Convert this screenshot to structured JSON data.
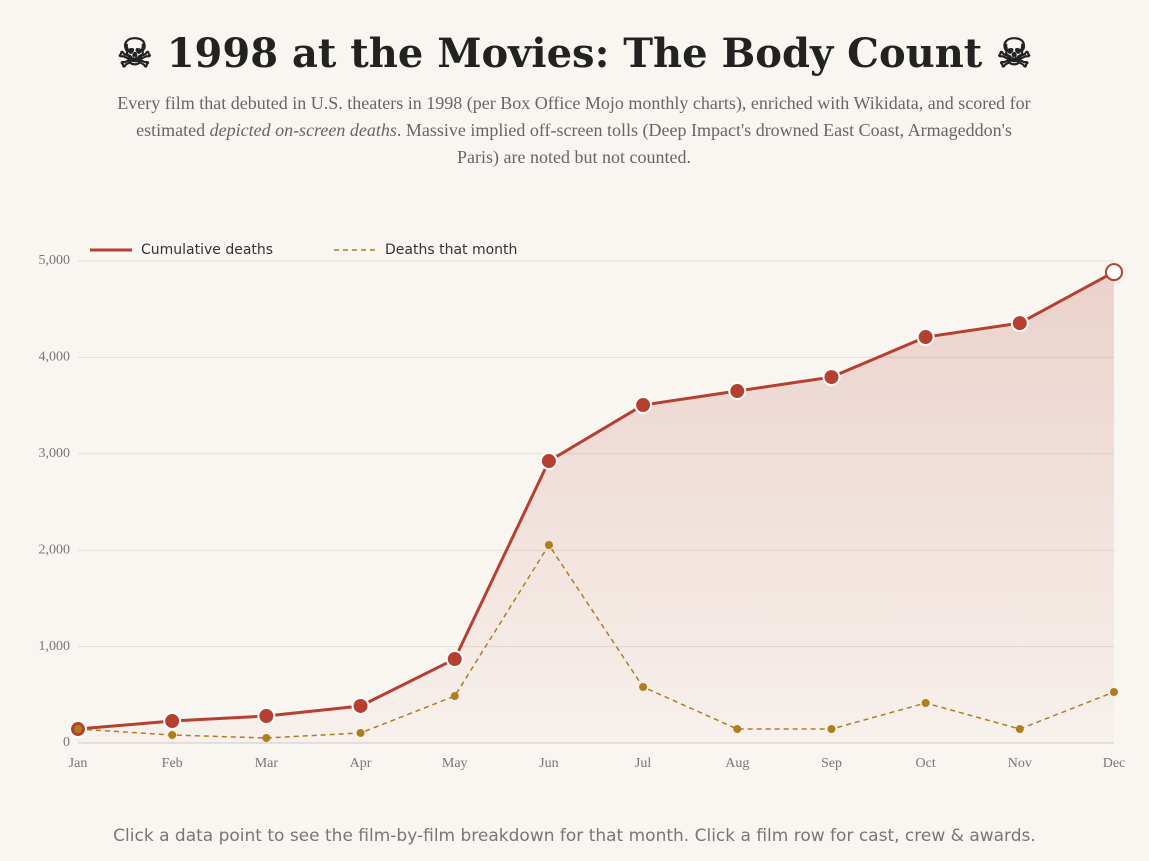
{
  "chart_data": {
    "type": "line",
    "title": "☠ 1998 at the Movies: The Body Count ☠",
    "subtitle": [
      "Every film that debuted in U.S. theaters in 1998 (per Box Office Mojo monthly charts), enriched with Wikidata, and scored for estimated ",
      "depicted on-screen deaths",
      ". Massive implied off-screen tolls (Deep Impact's drowned East Coast, Armageddon's Paris) are noted but not counted."
    ],
    "footer": "Click a data point to see the film-by-film breakdown for that month. Click a film row for cast, crew & awards.",
    "categories": [
      "Jan",
      "Feb",
      "Mar",
      "Apr",
      "May",
      "Jun",
      "Jul",
      "Aug",
      "Sep",
      "Oct",
      "Nov",
      "Dec"
    ],
    "series": [
      {
        "name": "Cumulative deaths",
        "color": "#b5402f",
        "values": [
          145,
          228,
          280,
          384,
          871,
          2925,
          3506,
          3651,
          3796,
          4211,
          4356,
          4885
        ]
      },
      {
        "name": "Deaths that month",
        "color": "#b07d1e",
        "values": [
          145,
          83,
          52,
          104,
          487,
          2054,
          581,
          145,
          145,
          415,
          145,
          529
        ]
      }
    ],
    "ylim": [
      0,
      5000
    ],
    "yticks": [
      0,
      {
        "value": 1000,
        "label": "1,000"
      },
      {
        "value": 2000,
        "label": "2,000"
      },
      {
        "value": 3000,
        "label": "3,000"
      },
      {
        "value": 4000,
        "label": "4,000"
      },
      {
        "value": 5000,
        "label": "5,000"
      }
    ],
    "grid": true,
    "legend": "top-left"
  }
}
